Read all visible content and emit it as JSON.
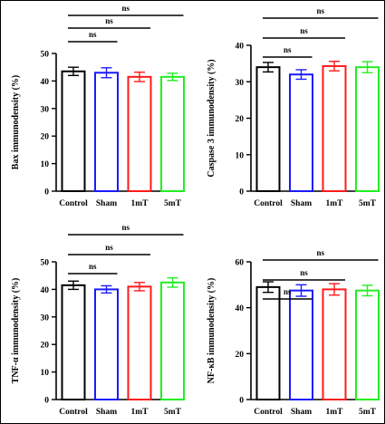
{
  "chart_data": [
    {
      "type": "bar",
      "ylabel": "Bax immunodensity (%)",
      "categories": [
        "Control",
        "Sham",
        "1mT",
        "5mT"
      ],
      "values": [
        43.5,
        43.0,
        41.5,
        41.5
      ],
      "errors": [
        1.5,
        1.8,
        1.7,
        1.3
      ],
      "ylim": [
        0,
        50
      ],
      "yticks": [
        0,
        10,
        20,
        30,
        40,
        50
      ],
      "colors": [
        "#000000",
        "#1a1aff",
        "#ff1a1a",
        "#22ee22"
      ],
      "comparisons": [
        {
          "from": "Control",
          "to": "Sham",
          "label": "ns"
        },
        {
          "from": "Control",
          "to": "1mT",
          "label": "ns"
        },
        {
          "from": "Control",
          "to": "5mT",
          "label": "ns"
        }
      ]
    },
    {
      "type": "bar",
      "ylabel": "Caspase 3 immunodensity (%)",
      "categories": [
        "Control",
        "Sham",
        "1mT",
        "5mT"
      ],
      "values": [
        34.0,
        32.0,
        34.3,
        34.0
      ],
      "errors": [
        1.3,
        1.3,
        1.3,
        1.5
      ],
      "ylim": [
        0,
        40
      ],
      "yticks": [
        0,
        10,
        20,
        30,
        40
      ],
      "colors": [
        "#000000",
        "#1a1aff",
        "#ff1a1a",
        "#22ee22"
      ],
      "comparisons": [
        {
          "from": "Control",
          "to": "Sham",
          "label": "ns"
        },
        {
          "from": "Control",
          "to": "1mT",
          "label": "ns"
        },
        {
          "from": "Control",
          "to": "5mT",
          "label": "ns"
        }
      ]
    },
    {
      "type": "bar",
      "ylabel": "TNF-α immunodensity (%)",
      "categories": [
        "Control",
        "Sham",
        "1mT",
        "5mT"
      ],
      "values": [
        41.5,
        40.0,
        41.0,
        42.5
      ],
      "errors": [
        1.5,
        1.3,
        1.5,
        1.7
      ],
      "ylim": [
        0,
        50
      ],
      "yticks": [
        0,
        10,
        20,
        30,
        40,
        50
      ],
      "colors": [
        "#000000",
        "#1a1aff",
        "#ff1a1a",
        "#22ee22"
      ],
      "comparisons": [
        {
          "from": "Control",
          "to": "Sham",
          "label": "ns"
        },
        {
          "from": "Control",
          "to": "1mT",
          "label": "ns"
        },
        {
          "from": "Control",
          "to": "5mT",
          "label": "ns"
        }
      ]
    },
    {
      "type": "bar",
      "ylabel": "NF-κB immunodensity (%)",
      "categories": [
        "Control",
        "Sham",
        "1mT",
        "5mT"
      ],
      "values": [
        49.0,
        47.5,
        48.0,
        47.5
      ],
      "errors": [
        2.3,
        2.5,
        2.5,
        2.3
      ],
      "ylim": [
        0,
        60
      ],
      "yticks": [
        0,
        20,
        40,
        60
      ],
      "colors": [
        "#000000",
        "#1a1aff",
        "#ff1a1a",
        "#22ee22"
      ],
      "comparisons": [
        {
          "from": "Control",
          "to": "Sham",
          "label": "ns"
        },
        {
          "from": "Control",
          "to": "1mT",
          "label": "ns"
        },
        {
          "from": "Control",
          "to": "5mT",
          "label": "ns"
        }
      ]
    }
  ]
}
